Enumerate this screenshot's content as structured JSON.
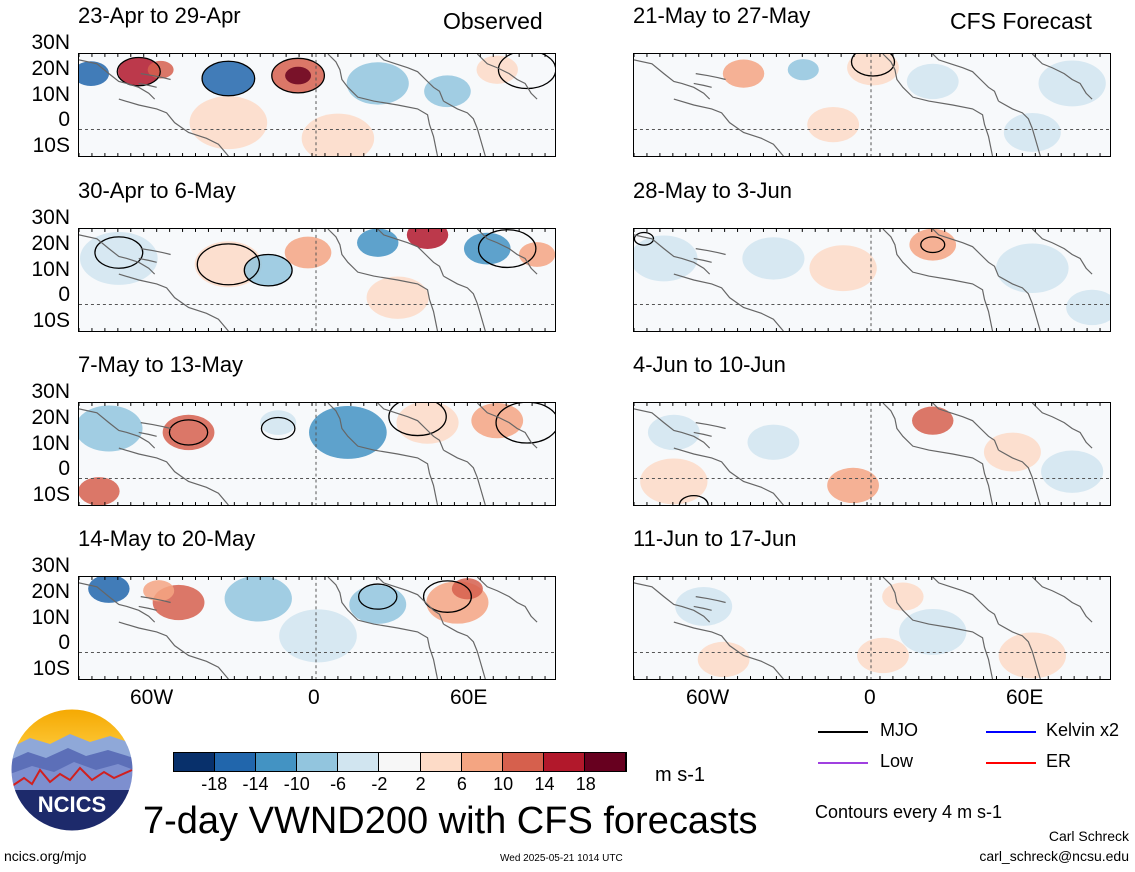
{
  "header": {
    "observed_label": "Observed",
    "forecast_label": "CFS Forecast"
  },
  "observed_panels": [
    {
      "title": "23-Apr to 29-Apr"
    },
    {
      "title": "30-Apr to 6-May"
    },
    {
      "title": "7-May to 13-May"
    },
    {
      "title": "14-May to 20-May"
    }
  ],
  "forecast_panels": [
    {
      "title": "21-May to 27-May"
    },
    {
      "title": "28-May to 3-Jun"
    },
    {
      "title": "4-Jun to 10-Jun"
    },
    {
      "title": "11-Jun to 17-Jun"
    }
  ],
  "lat_labels": [
    "30N",
    "20N",
    "10N",
    "0",
    "10S"
  ],
  "lon_labels": [
    "60W",
    "0",
    "60E"
  ],
  "colorbar": {
    "ticks": [
      "-18",
      "-14",
      "-10",
      "-6",
      "-2",
      "2",
      "6",
      "10",
      "14",
      "18"
    ],
    "colors": [
      "#08306b",
      "#2166ac",
      "#4393c3",
      "#92c5de",
      "#d1e5f0",
      "#f7f7f7",
      "#fddbc7",
      "#f4a582",
      "#d6604d",
      "#b2182b",
      "#67001f"
    ],
    "units": "m s-1"
  },
  "legend": {
    "items": [
      {
        "label": "MJO",
        "color": "#000000"
      },
      {
        "label": "Kelvin x2",
        "color": "#0000ff"
      },
      {
        "label": "Low",
        "color": "#a040e0"
      },
      {
        "label": "ER",
        "color": "#ff0000"
      }
    ],
    "contours_note": "Contours every 4 m s-1"
  },
  "main_title": "7-day VWND200 with CFS forecasts",
  "footer": {
    "url": "ncics.org/mjo",
    "timestamp": "Wed 2025-05-21 1014 UTC",
    "author": "Carl Schreck",
    "email": "carl_schreck@ncsu.edu",
    "logo_text": "NCICS"
  }
}
